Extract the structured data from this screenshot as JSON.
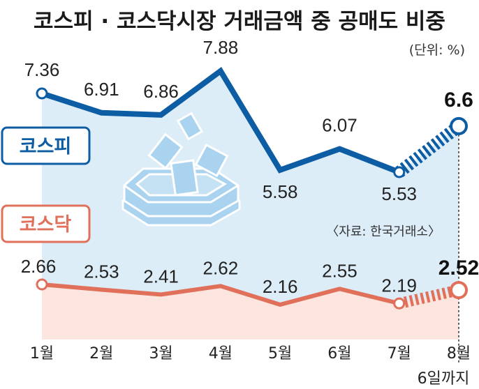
{
  "title": "코스피 · 코스닥시장 거래금액 중 공매도 비중",
  "unit": "(단위: %)",
  "source": "〈자료: 한국거래소〉",
  "last_note": "6일까지",
  "colors": {
    "kospi": "#0c5da4",
    "kospi_fill": "#dcedf8",
    "kosdaq": "#e0705a",
    "kosdaq_fill": "#fbe5de",
    "icon": "#a9d3ef"
  },
  "icon": "ballot-box-icon",
  "chart_data": {
    "type": "line",
    "categories": [
      "1월",
      "2월",
      "3월",
      "4월",
      "5월",
      "6월",
      "7월",
      "8월"
    ],
    "series": [
      {
        "name": "코스피",
        "values": [
          7.36,
          6.91,
          6.86,
          7.88,
          5.58,
          6.07,
          5.53,
          6.6
        ],
        "labels": [
          "7.36",
          "6.91",
          "6.86",
          "7.88",
          "5.58",
          "6.07",
          "5.53",
          "6.6"
        ]
      },
      {
        "name": "코스닥",
        "values": [
          2.66,
          2.53,
          2.41,
          2.62,
          2.16,
          2.55,
          2.19,
          2.52
        ],
        "labels": [
          "2.66",
          "2.53",
          "2.41",
          "2.62",
          "2.16",
          "2.55",
          "2.19",
          "2.52"
        ]
      }
    ],
    "ylabel": "",
    "xlabel": ""
  }
}
